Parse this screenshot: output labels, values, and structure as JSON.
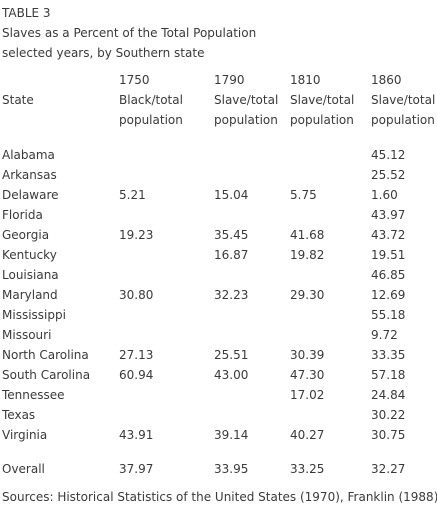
{
  "caption": {
    "table_label": "TABLE 3",
    "title": "Slaves as a Percent of the Total Population",
    "subtitle": "selected years, by Southern state"
  },
  "header": {
    "state": "State",
    "columns": [
      {
        "year": "1750",
        "line1": "Black/total",
        "line2": "population"
      },
      {
        "year": "1790",
        "line1": "Slave/total",
        "line2": "population"
      },
      {
        "year": "1810",
        "line1": "Slave/total",
        "line2": "population"
      },
      {
        "year": "1860",
        "line1": "Slave/total",
        "line2": "population"
      }
    ]
  },
  "rows": [
    {
      "state": "Alabama",
      "v1750": "",
      "v1790": "",
      "v1810": "",
      "v1860": "45.12"
    },
    {
      "state": "Arkansas",
      "v1750": "",
      "v1790": "",
      "v1810": "",
      "v1860": "25.52"
    },
    {
      "state": "Delaware",
      "v1750": "5.21",
      "v1790": "15.04",
      "v1810": "5.75",
      "v1860": "1.60"
    },
    {
      "state": "Florida",
      "v1750": "",
      "v1790": "",
      "v1810": "",
      "v1860": "43.97"
    },
    {
      "state": "Georgia",
      "v1750": "19.23",
      "v1790": "35.45",
      "v1810": "41.68",
      "v1860": "43.72"
    },
    {
      "state": "Kentucky",
      "v1750": "",
      "v1790": "16.87",
      "v1810": "19.82",
      "v1860": "19.51"
    },
    {
      "state": "Louisiana",
      "v1750": "",
      "v1790": "",
      "v1810": "",
      "v1860": "46.85"
    },
    {
      "state": "Maryland",
      "v1750": "30.80",
      "v1790": "32.23",
      "v1810": "29.30",
      "v1860": "12.69"
    },
    {
      "state": "Mississippi",
      "v1750": "",
      "v1790": "",
      "v1810": "",
      "v1860": "55.18"
    },
    {
      "state": "Missouri",
      "v1750": "",
      "v1790": "",
      "v1810": "",
      "v1860": "9.72"
    },
    {
      "state": "North Carolina",
      "v1750": "27.13",
      "v1790": "25.51",
      "v1810": "30.39",
      "v1860": "33.35"
    },
    {
      "state": "South Carolina",
      "v1750": "60.94",
      "v1790": "43.00",
      "v1810": "47.30",
      "v1860": "57.18"
    },
    {
      "state": "Tennessee",
      "v1750": "",
      "v1790": "",
      "v1810": "17.02",
      "v1860": "24.84"
    },
    {
      "state": "Texas",
      "v1750": "",
      "v1790": "",
      "v1810": "",
      "v1860": "30.22"
    },
    {
      "state": "Virginia",
      "v1750": "43.91",
      "v1790": "39.14",
      "v1810": "40.27",
      "v1860": "30.75"
    }
  ],
  "overall": {
    "state": "Overall",
    "v1750": "37.97",
    "v1790": "33.95",
    "v1810": "33.25",
    "v1860": "32.27"
  },
  "source": "Sources: Historical Statistics of the United States (1970), Franklin (1988).",
  "colors": {
    "text": "#3a3a3a",
    "background": "#ffffff"
  }
}
